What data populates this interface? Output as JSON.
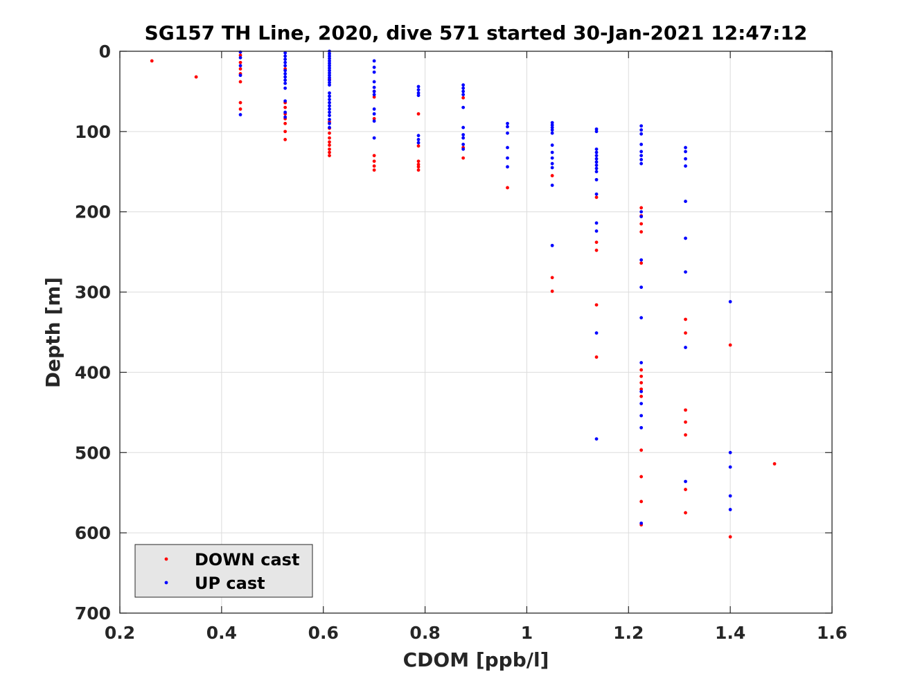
{
  "chart_data": {
    "type": "scatter",
    "title": "SG157 TH Line, 2020, dive 571 started 30-Jan-2021 12:47:12",
    "xlabel": "CDOM [ppb/l]",
    "ylabel": "Depth [m]",
    "xlim": [
      0.2,
      1.6
    ],
    "ylim": [
      0,
      700
    ],
    "y_reversed": true,
    "xticks": [
      0.2,
      0.4,
      0.6,
      0.8,
      1,
      1.2,
      1.4,
      1.6
    ],
    "xtick_labels": [
      "0.2",
      "0.4",
      "0.6",
      "0.8",
      "1",
      "1.2",
      "1.4",
      "1.6"
    ],
    "yticks": [
      0,
      100,
      200,
      300,
      400,
      500,
      600,
      700
    ],
    "ytick_labels": [
      "0",
      "100",
      "200",
      "300",
      "400",
      "500",
      "600",
      "700"
    ],
    "grid": true,
    "legend_position": "bottom-left",
    "series": [
      {
        "name": "DOWN cast",
        "color": "#ff0000",
        "points": [
          [
            0.263,
            12
          ],
          [
            0.35,
            32
          ],
          [
            0.437,
            5
          ],
          [
            0.437,
            14
          ],
          [
            0.437,
            22
          ],
          [
            0.437,
            28
          ],
          [
            0.437,
            38
          ],
          [
            0.437,
            64
          ],
          [
            0.437,
            72
          ],
          [
            0.525,
            22
          ],
          [
            0.525,
            64
          ],
          [
            0.525,
            70
          ],
          [
            0.525,
            78
          ],
          [
            0.525,
            84
          ],
          [
            0.525,
            90
          ],
          [
            0.525,
            100
          ],
          [
            0.525,
            110
          ],
          [
            0.612,
            35
          ],
          [
            0.612,
            88
          ],
          [
            0.612,
            96
          ],
          [
            0.612,
            102
          ],
          [
            0.612,
            108
          ],
          [
            0.612,
            113
          ],
          [
            0.612,
            117
          ],
          [
            0.612,
            122
          ],
          [
            0.612,
            126
          ],
          [
            0.612,
            130
          ],
          [
            0.7,
            50
          ],
          [
            0.7,
            57
          ],
          [
            0.7,
            84
          ],
          [
            0.7,
            130
          ],
          [
            0.7,
            137
          ],
          [
            0.7,
            143
          ],
          [
            0.7,
            148
          ],
          [
            0.787,
            78
          ],
          [
            0.787,
            118
          ],
          [
            0.787,
            137
          ],
          [
            0.787,
            141
          ],
          [
            0.787,
            144
          ],
          [
            0.787,
            148
          ],
          [
            0.875,
            58
          ],
          [
            0.875,
            120
          ],
          [
            0.875,
            133
          ],
          [
            0.962,
            170
          ],
          [
            1.05,
            155
          ],
          [
            1.05,
            282
          ],
          [
            1.05,
            299
          ],
          [
            1.137,
            182
          ],
          [
            1.137,
            238
          ],
          [
            1.137,
            248
          ],
          [
            1.137,
            316
          ],
          [
            1.137,
            381
          ],
          [
            1.225,
            195
          ],
          [
            1.225,
            205
          ],
          [
            1.225,
            215
          ],
          [
            1.225,
            225
          ],
          [
            1.225,
            264
          ],
          [
            1.225,
            397
          ],
          [
            1.225,
            405
          ],
          [
            1.225,
            413
          ],
          [
            1.225,
            421
          ],
          [
            1.225,
            430
          ],
          [
            1.225,
            497
          ],
          [
            1.225,
            530
          ],
          [
            1.225,
            561
          ],
          [
            1.225,
            590
          ],
          [
            1.312,
            334
          ],
          [
            1.312,
            351
          ],
          [
            1.312,
            447
          ],
          [
            1.312,
            462
          ],
          [
            1.312,
            478
          ],
          [
            1.312,
            546
          ],
          [
            1.312,
            575
          ],
          [
            1.4,
            366
          ],
          [
            1.4,
            605
          ],
          [
            1.487,
            514
          ]
        ]
      },
      {
        "name": "UP cast",
        "color": "#0000ff",
        "points": [
          [
            0.437,
            1
          ],
          [
            0.437,
            8
          ],
          [
            0.437,
            18
          ],
          [
            0.437,
            30
          ],
          [
            0.437,
            79
          ],
          [
            0.525,
            2
          ],
          [
            0.525,
            6
          ],
          [
            0.525,
            10
          ],
          [
            0.525,
            14
          ],
          [
            0.525,
            18
          ],
          [
            0.525,
            24
          ],
          [
            0.525,
            28
          ],
          [
            0.525,
            32
          ],
          [
            0.525,
            36
          ],
          [
            0.525,
            40
          ],
          [
            0.525,
            46
          ],
          [
            0.525,
            62
          ],
          [
            0.525,
            76
          ],
          [
            0.525,
            82
          ],
          [
            0.612,
            0
          ],
          [
            0.612,
            3
          ],
          [
            0.612,
            6
          ],
          [
            0.612,
            9
          ],
          [
            0.612,
            12
          ],
          [
            0.612,
            15
          ],
          [
            0.612,
            18
          ],
          [
            0.612,
            21
          ],
          [
            0.612,
            24
          ],
          [
            0.612,
            27
          ],
          [
            0.612,
            30
          ],
          [
            0.612,
            33
          ],
          [
            0.612,
            36
          ],
          [
            0.612,
            39
          ],
          [
            0.612,
            42
          ],
          [
            0.612,
            52
          ],
          [
            0.612,
            56
          ],
          [
            0.612,
            60
          ],
          [
            0.612,
            64
          ],
          [
            0.612,
            68
          ],
          [
            0.612,
            72
          ],
          [
            0.612,
            76
          ],
          [
            0.612,
            80
          ],
          [
            0.612,
            85
          ],
          [
            0.612,
            90
          ],
          [
            0.612,
            95
          ],
          [
            0.7,
            12
          ],
          [
            0.7,
            20
          ],
          [
            0.7,
            26
          ],
          [
            0.7,
            38
          ],
          [
            0.7,
            45
          ],
          [
            0.7,
            50
          ],
          [
            0.7,
            54
          ],
          [
            0.7,
            72
          ],
          [
            0.7,
            78
          ],
          [
            0.7,
            87
          ],
          [
            0.7,
            108
          ],
          [
            0.787,
            44
          ],
          [
            0.787,
            48
          ],
          [
            0.787,
            52
          ],
          [
            0.787,
            55
          ],
          [
            0.787,
            105
          ],
          [
            0.787,
            110
          ],
          [
            0.787,
            114
          ],
          [
            0.875,
            42
          ],
          [
            0.875,
            46
          ],
          [
            0.875,
            50
          ],
          [
            0.875,
            54
          ],
          [
            0.875,
            70
          ],
          [
            0.875,
            95
          ],
          [
            0.875,
            104
          ],
          [
            0.875,
            108
          ],
          [
            0.875,
            116
          ],
          [
            0.875,
            122
          ],
          [
            0.962,
            90
          ],
          [
            0.962,
            94
          ],
          [
            0.962,
            102
          ],
          [
            0.962,
            120
          ],
          [
            0.962,
            133
          ],
          [
            0.962,
            144
          ],
          [
            1.05,
            89
          ],
          [
            1.05,
            92
          ],
          [
            1.05,
            95
          ],
          [
            1.05,
            98
          ],
          [
            1.05,
            102
          ],
          [
            1.05,
            117
          ],
          [
            1.05,
            126
          ],
          [
            1.05,
            133
          ],
          [
            1.05,
            140
          ],
          [
            1.05,
            145
          ],
          [
            1.05,
            167
          ],
          [
            1.05,
            242
          ],
          [
            1.137,
            97
          ],
          [
            1.137,
            100
          ],
          [
            1.137,
            122
          ],
          [
            1.137,
            126
          ],
          [
            1.137,
            130
          ],
          [
            1.137,
            134
          ],
          [
            1.137,
            138
          ],
          [
            1.137,
            142
          ],
          [
            1.137,
            146
          ],
          [
            1.137,
            150
          ],
          [
            1.137,
            160
          ],
          [
            1.137,
            178
          ],
          [
            1.137,
            214
          ],
          [
            1.137,
            224
          ],
          [
            1.137,
            351
          ],
          [
            1.137,
            483
          ],
          [
            1.225,
            93
          ],
          [
            1.225,
            98
          ],
          [
            1.225,
            103
          ],
          [
            1.225,
            116
          ],
          [
            1.225,
            125
          ],
          [
            1.225,
            130
          ],
          [
            1.225,
            135
          ],
          [
            1.225,
            140
          ],
          [
            1.225,
            200
          ],
          [
            1.225,
            206
          ],
          [
            1.225,
            260
          ],
          [
            1.225,
            294
          ],
          [
            1.225,
            332
          ],
          [
            1.225,
            388
          ],
          [
            1.225,
            424
          ],
          [
            1.225,
            439
          ],
          [
            1.225,
            454
          ],
          [
            1.225,
            469
          ],
          [
            1.225,
            588
          ],
          [
            1.312,
            120
          ],
          [
            1.312,
            125
          ],
          [
            1.312,
            134
          ],
          [
            1.312,
            143
          ],
          [
            1.312,
            187
          ],
          [
            1.312,
            233
          ],
          [
            1.312,
            275
          ],
          [
            1.312,
            369
          ],
          [
            1.312,
            536
          ],
          [
            1.4,
            312
          ],
          [
            1.4,
            500
          ],
          [
            1.4,
            518
          ],
          [
            1.4,
            554
          ],
          [
            1.4,
            571
          ]
        ]
      }
    ]
  }
}
